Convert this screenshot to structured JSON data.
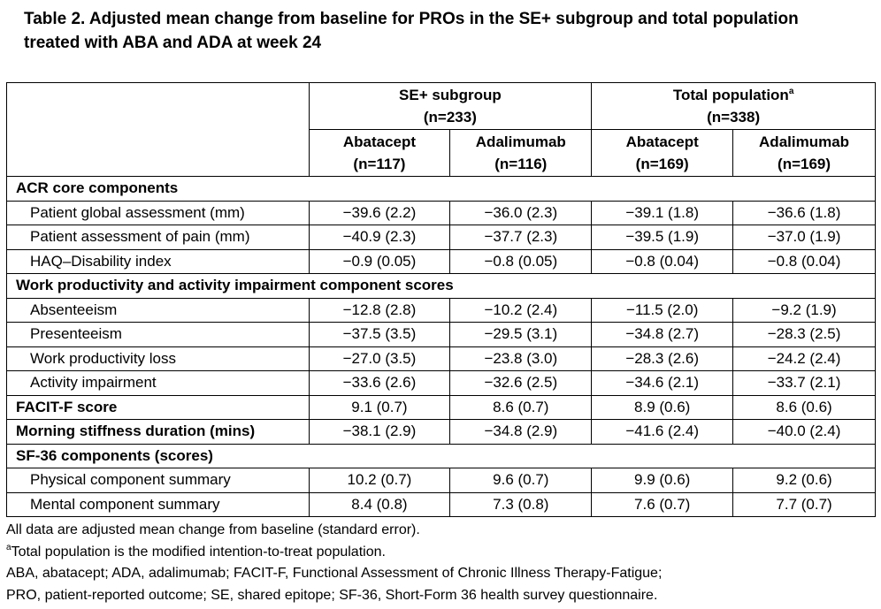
{
  "title": "Table 2. Adjusted mean change from baseline for PROs in the SE+ subgroup and total population treated with ABA and ADA at week 24",
  "table": {
    "groups": [
      {
        "label": "SE+ subgroup",
        "n": "(n=233)"
      },
      {
        "label": "Total population",
        "sup": "a",
        "n": "(n=338)"
      }
    ],
    "columns": [
      {
        "label": "Abatacept",
        "n": "(n=117)"
      },
      {
        "label": "Adalimumab",
        "n": "(n=116)"
      },
      {
        "label": "Abatacept",
        "n": "(n=169)"
      },
      {
        "label": "Adalimumab",
        "n": "(n=169)"
      }
    ],
    "sections": [
      {
        "title": "ACR core components",
        "rows": [
          {
            "label": "Patient global assessment (mm)",
            "values": [
              "−39.6 (2.2)",
              "−36.0 (2.3)",
              "−39.1 (1.8)",
              "−36.6 (1.8)"
            ]
          },
          {
            "label": "Patient assessment of pain (mm)",
            "values": [
              "−40.9 (2.3)",
              "−37.7 (2.3)",
              "−39.5 (1.9)",
              "−37.0 (1.9)"
            ]
          },
          {
            "label": "HAQ–Disability index",
            "values": [
              "−0.9 (0.05)",
              "−0.8 (0.05)",
              "−0.8 (0.04)",
              "−0.8 (0.04)"
            ]
          }
        ]
      },
      {
        "title": "Work productivity and activity impairment component scores",
        "rows": [
          {
            "label": "Absenteeism",
            "values": [
              "−12.8 (2.8)",
              "−10.2 (2.4)",
              "−11.5 (2.0)",
              "−9.2 (1.9)"
            ]
          },
          {
            "label": "Presenteeism",
            "values": [
              "−37.5 (3.5)",
              "−29.5 (3.1)",
              "−34.8 (2.7)",
              "−28.3 (2.5)"
            ]
          },
          {
            "label": "Work productivity loss",
            "values": [
              "−27.0 (3.5)",
              "−23.8 (3.0)",
              "−28.3 (2.6)",
              "−24.2 (2.4)"
            ]
          },
          {
            "label": "Activity impairment",
            "values": [
              "−33.6 (2.6)",
              "−32.6 (2.5)",
              "−34.6 (2.1)",
              "−33.7 (2.1)"
            ]
          }
        ]
      },
      {
        "title": "FACIT-F score",
        "values": [
          "9.1 (0.7)",
          "8.6 (0.7)",
          "8.9 (0.6)",
          "8.6 (0.6)"
        ]
      },
      {
        "title": "Morning stiffness duration (mins)",
        "values": [
          "−38.1 (2.9)",
          "−34.8 (2.9)",
          "−41.6 (2.4)",
          "−40.0 (2.4)"
        ]
      },
      {
        "title": "SF-36 components (scores)",
        "rows": [
          {
            "label": "Physical component summary",
            "values": [
              "10.2 (0.7)",
              "9.6 (0.7)",
              "9.9 (0.6)",
              "9.2 (0.6)"
            ]
          },
          {
            "label": "Mental component summary",
            "values": [
              "8.4 (0.8)",
              "7.3 (0.8)",
              "7.6 (0.7)",
              "7.7 (0.7)"
            ]
          }
        ]
      }
    ]
  },
  "footnotes": [
    {
      "text": "All data are adjusted mean change from baseline (standard error)."
    },
    {
      "sup": "a",
      "text": "Total population is the modified intention-to-treat population."
    },
    {
      "text": "ABA, abatacept; ADA, adalimumab; FACIT-F, Functional Assessment of Chronic Illness Therapy-Fatigue;"
    },
    {
      "text": "PRO, patient-reported outcome; SE, shared epitope; SF-36, Short-Form 36 health survey questionnaire."
    }
  ]
}
